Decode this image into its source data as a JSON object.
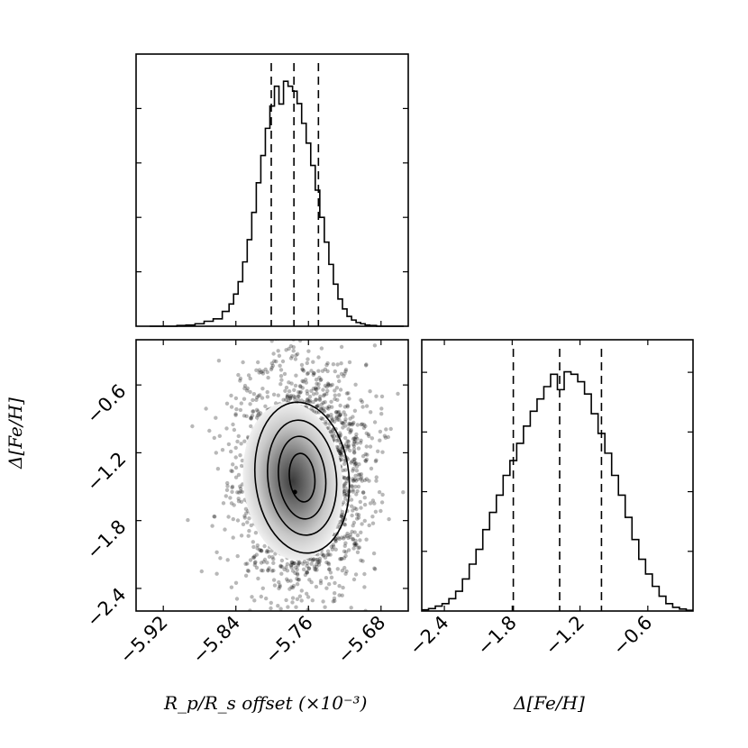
{
  "colors": {
    "ink": "#000000",
    "background": "#ffffff"
  },
  "chart_data": [
    {
      "panel": "marginal-rp-rs-offset",
      "type": "histogram",
      "x_variable": "Rp/Rs offset (×10⁻³)",
      "xlim": [
        -5.95,
        -5.65
      ],
      "ylim": [
        0,
        1.0
      ],
      "bin_centers": [
        -5.93,
        -5.92,
        -5.91,
        -5.9,
        -5.89,
        -5.88,
        -5.87,
        -5.86,
        -5.85,
        -5.845,
        -5.84,
        -5.835,
        -5.83,
        -5.825,
        -5.82,
        -5.815,
        -5.81,
        -5.805,
        -5.8,
        -5.795,
        -5.79,
        -5.785,
        -5.78,
        -5.775,
        -5.77,
        -5.765,
        -5.76,
        -5.755,
        -5.75,
        -5.745,
        -5.74,
        -5.735,
        -5.73,
        -5.725,
        -5.72,
        -5.715,
        -5.71,
        -5.705,
        -5.7,
        -5.695,
        -5.69,
        -5.68,
        -5.67,
        -5.66
      ],
      "counts": [
        0.0,
        0.0,
        0.0,
        0.003,
        0.005,
        0.01,
        0.02,
        0.03,
        0.06,
        0.09,
        0.13,
        0.18,
        0.26,
        0.35,
        0.46,
        0.58,
        0.69,
        0.8,
        0.89,
        0.97,
        1.0,
        0.99,
        0.97,
        0.95,
        0.9,
        0.82,
        0.74,
        0.65,
        0.55,
        0.44,
        0.34,
        0.25,
        0.17,
        0.11,
        0.07,
        0.04,
        0.025,
        0.015,
        0.01,
        0.005,
        0.003,
        0.0,
        0.0,
        0.0
      ],
      "quantiles": [
        -5.801,
        -5.776,
        -5.749
      ]
    },
    {
      "panel": "joint-density",
      "type": "scatter",
      "x_variable": "Rp/Rs offset (×10⁻³)",
      "y_variable": "Δ[Fe/H]",
      "xlim": [
        -5.95,
        -5.65
      ],
      "ylim": [
        -2.6,
        -0.2
      ],
      "x_ticks": [
        -5.92,
        -5.84,
        -5.76,
        -5.68
      ],
      "y_ticks": [
        -2.4,
        -1.8,
        -1.2,
        -0.6
      ],
      "center": [
        -5.767,
        -1.42
      ],
      "contour_levels": [
        0.118,
        0.393,
        0.675,
        0.864
      ]
    },
    {
      "panel": "marginal-fe-h",
      "type": "histogram",
      "x_variable": "Δ[Fe/H]",
      "xlim": [
        -2.6,
        -0.2
      ],
      "ylim": [
        0,
        1.0
      ],
      "x_ticks": [
        -2.4,
        -1.8,
        -1.2,
        -0.6
      ],
      "bin_centers": [
        -2.57,
        -2.51,
        -2.45,
        -2.39,
        -2.33,
        -2.27,
        -2.21,
        -2.15,
        -2.09,
        -2.03,
        -1.97,
        -1.91,
        -1.85,
        -1.79,
        -1.73,
        -1.67,
        -1.61,
        -1.55,
        -1.49,
        -1.43,
        -1.37,
        -1.31,
        -1.25,
        -1.19,
        -1.13,
        -1.07,
        -1.01,
        -0.95,
        -0.89,
        -0.83,
        -0.77,
        -0.71,
        -0.65,
        -0.59,
        -0.53,
        -0.47,
        -0.41,
        -0.35,
        -0.29,
        -0.23
      ],
      "counts": [
        0.005,
        0.01,
        0.02,
        0.03,
        0.05,
        0.08,
        0.13,
        0.19,
        0.25,
        0.33,
        0.4,
        0.47,
        0.55,
        0.61,
        0.68,
        0.75,
        0.81,
        0.86,
        0.91,
        0.96,
        1.0,
        0.97,
        0.96,
        0.93,
        0.88,
        0.8,
        0.72,
        0.64,
        0.55,
        0.47,
        0.38,
        0.29,
        0.21,
        0.15,
        0.1,
        0.06,
        0.03,
        0.015,
        0.008,
        0.003
      ],
      "quantiles": [
        -1.79,
        -1.38,
        -1.01
      ]
    }
  ],
  "labels": {
    "x_left": "R_p/R_s offset (×10⁻³)",
    "x_right": "Δ[Fe/H]",
    "y_left": "Δ[Fe/H]"
  }
}
